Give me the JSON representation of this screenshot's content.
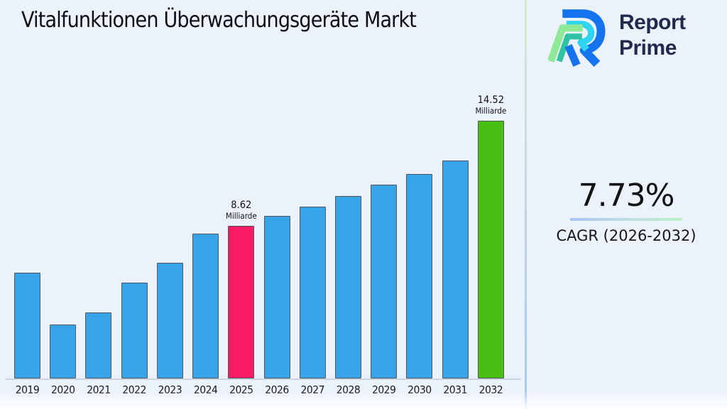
{
  "page": {
    "background": "#ecf2fc"
  },
  "header": {
    "title": "Vitalfunktionen Überwachungsgeräte Markt"
  },
  "logo": {
    "line1": "Report",
    "line2": "Prime",
    "text_color": "#1f2a4d",
    "mark_colors": {
      "blue": "#1573ee",
      "cyan": "#2fd4f2",
      "green": "#8fe996",
      "teal": "#2fc3a3"
    }
  },
  "cagr": {
    "value": "7.73%",
    "label": "CAGR (2026-2032)",
    "underline_gradient": [
      "#a9c4f3",
      "#b9efc4"
    ]
  },
  "divider": {
    "gradient_top": "#cdeecb",
    "gradient_bottom": "#a9c8f1"
  },
  "chart_data": {
    "type": "bar",
    "title": "Vitalfunktionen Überwachungsgeräte Markt",
    "unit": "Milliarde",
    "categories": [
      "2019",
      "2020",
      "2021",
      "2022",
      "2023",
      "2024",
      "2025",
      "2026",
      "2027",
      "2028",
      "2029",
      "2030",
      "2031",
      "2032"
    ],
    "values": [
      5.96,
      3.03,
      3.72,
      5.38,
      6.52,
      8.16,
      8.62,
      9.16,
      9.67,
      10.26,
      10.93,
      11.51,
      12.28,
      14.52
    ],
    "ylim": [
      0,
      16
    ],
    "grid": false,
    "legend": false,
    "xlabel": "",
    "ylabel": "",
    "bar_colors": {
      "default": "#39a3e9",
      "2025": "#fa1a64",
      "2032": "#47be11"
    },
    "bar_border_color": "#53585f",
    "value_labels": {
      "2025": {
        "value": "8.62",
        "unit": "Milliarde"
      },
      "2032": {
        "value": "14.52",
        "unit": "Milliarde"
      }
    }
  }
}
